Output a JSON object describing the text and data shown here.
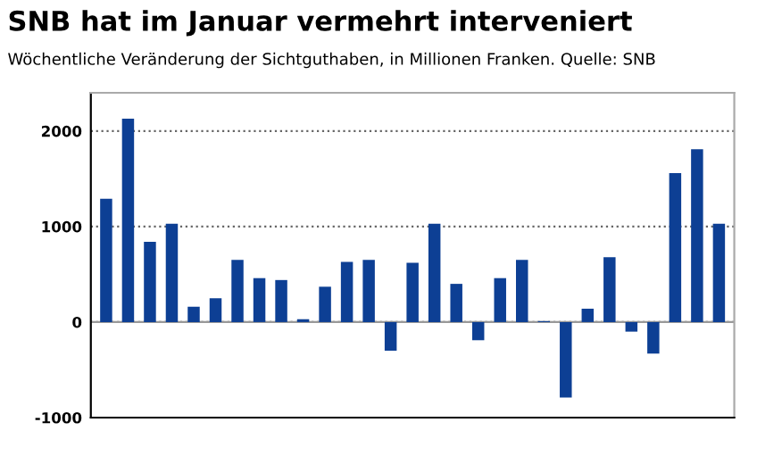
{
  "chart_data": {
    "type": "bar",
    "title": "SNB hat im Januar vermehrt interveniert",
    "subtitle": "Wöchentliche Veränderung der Sichtguthaben, in Millionen Franken. Quelle: SNB",
    "categories": [
      null,
      null,
      null,
      null,
      null,
      null,
      null,
      null,
      null,
      null,
      null,
      null,
      null,
      null,
      null,
      null,
      null,
      null,
      null,
      null,
      null,
      null,
      null,
      null,
      null,
      null,
      null,
      null,
      null
    ],
    "values": [
      1290,
      2130,
      840,
      1030,
      160,
      250,
      650,
      460,
      440,
      30,
      370,
      630,
      650,
      -300,
      620,
      1030,
      400,
      -190,
      460,
      650,
      10,
      -790,
      140,
      680,
      -100,
      -330,
      1560,
      1810,
      1030
    ],
    "color": "#0d3f94",
    "ylim": [
      -1000,
      2400
    ],
    "yticks": [
      -1000,
      0,
      1000,
      2000
    ],
    "grid": "y"
  }
}
